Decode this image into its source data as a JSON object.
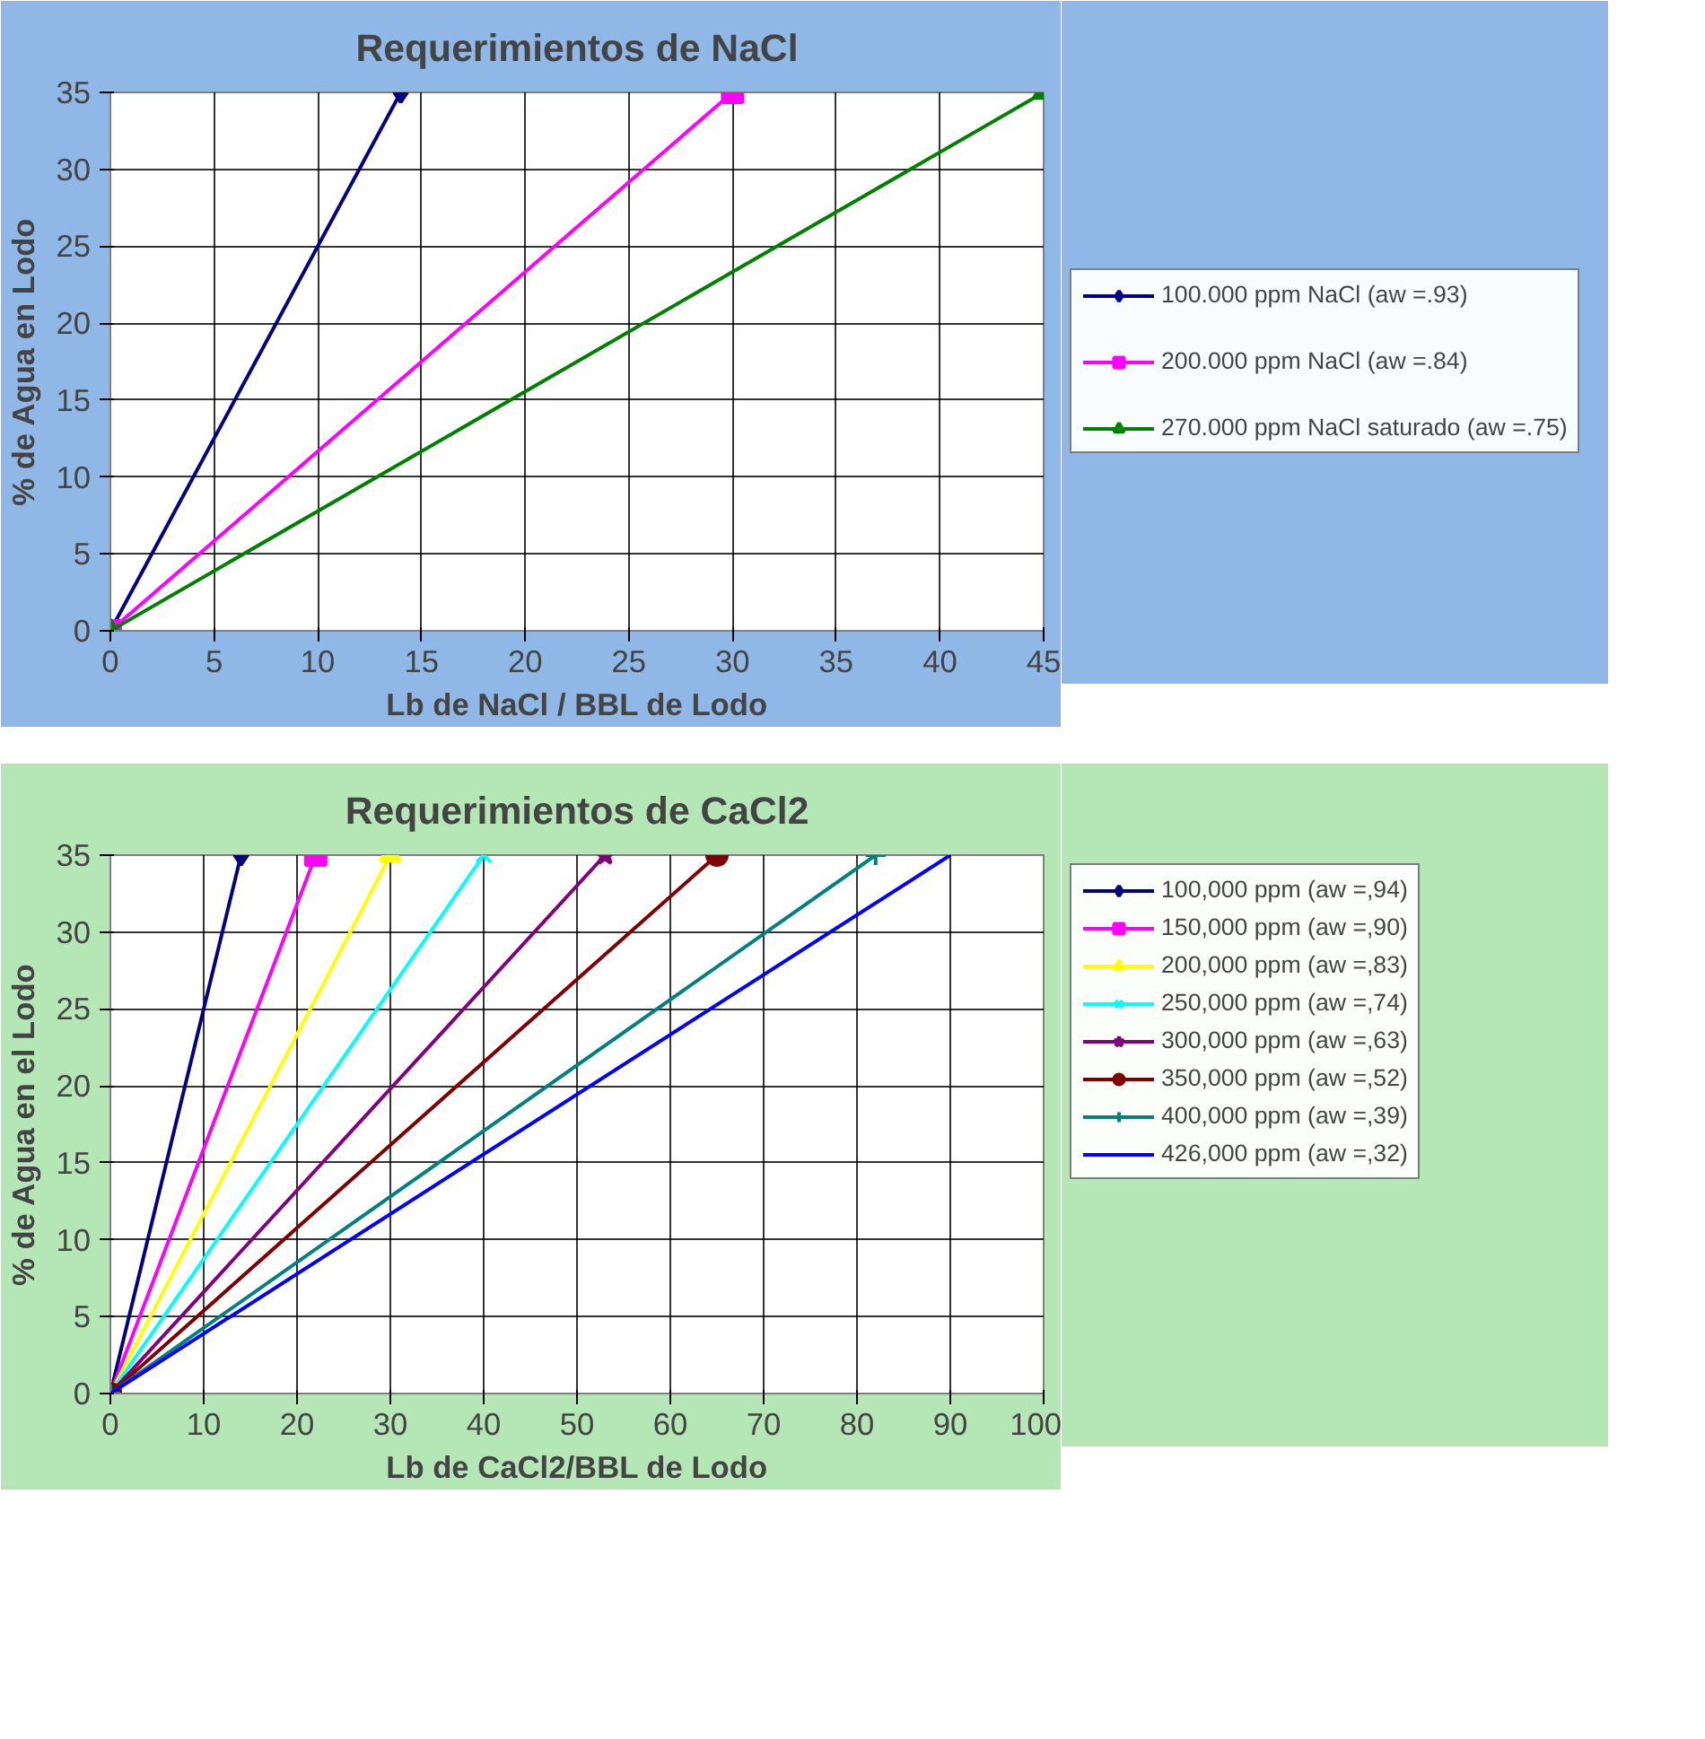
{
  "chart_data": [
    {
      "type": "line",
      "title": "Requerimientos de NaCl",
      "xlabel": "Lb de NaCl / BBL de Lodo",
      "ylabel": "% de Agua en Lodo",
      "xlim": [
        0,
        45
      ],
      "xticks": [
        0,
        5,
        10,
        15,
        20,
        25,
        30,
        35,
        40,
        45
      ],
      "ylim": [
        0,
        35
      ],
      "yticks": [
        0,
        5,
        10,
        15,
        20,
        25,
        30,
        35
      ],
      "grid": true,
      "legend": "right",
      "series": [
        {
          "name": "100.000 ppm NaCl (aw =.93)",
          "color": "#000080",
          "marker": "diamond",
          "x": [
            0,
            14
          ],
          "values": [
            0,
            35
          ]
        },
        {
          "name": "200.000 ppm NaCl (aw =.84)",
          "color": "#ff00ff",
          "marker": "square",
          "x": [
            0,
            30
          ],
          "values": [
            0,
            35
          ]
        },
        {
          "name": "270.000 ppm NaCl saturado (aw =.75)",
          "color": "#008000",
          "marker": "triangle",
          "x": [
            0,
            45
          ],
          "values": [
            0,
            35
          ]
        }
      ]
    },
    {
      "type": "line",
      "title": "Requerimientos de CaCl2",
      "xlabel": "Lb de CaCl2/BBL de Lodo",
      "ylabel": "% de Agua en el Lodo",
      "xlim": [
        0,
        100
      ],
      "xticks": [
        0,
        10,
        20,
        30,
        40,
        50,
        60,
        70,
        80,
        90,
        100
      ],
      "ylim": [
        0,
        35
      ],
      "yticks": [
        0,
        5,
        10,
        15,
        20,
        25,
        30,
        35
      ],
      "grid": true,
      "legend": "right",
      "series": [
        {
          "name": "100,000 ppm (aw =,94)",
          "color": "#000080",
          "marker": "diamond",
          "x": [
            0,
            14
          ],
          "values": [
            0,
            35
          ]
        },
        {
          "name": "150,000 ppm (aw =,90)",
          "color": "#ff00ff",
          "marker": "square",
          "x": [
            0,
            22
          ],
          "values": [
            0,
            35
          ]
        },
        {
          "name": "200,000 ppm (aw =,83)",
          "color": "#ffff00",
          "marker": "triangle",
          "x": [
            0,
            30
          ],
          "values": [
            0,
            35
          ]
        },
        {
          "name": "250,000 ppm (aw =,74)",
          "color": "#00ffff",
          "marker": "x",
          "x": [
            0,
            40
          ],
          "values": [
            0,
            35
          ]
        },
        {
          "name": "300,000 ppm (aw =,63)",
          "color": "#800080",
          "marker": "star",
          "x": [
            0,
            53
          ],
          "values": [
            0,
            35
          ]
        },
        {
          "name": "350,000 ppm (aw =,52)",
          "color": "#800000",
          "marker": "circle",
          "x": [
            0,
            65
          ],
          "values": [
            0,
            35
          ]
        },
        {
          "name": "400,000 ppm (aw =,39)",
          "color": "#008080",
          "marker": "cross",
          "x": [
            0,
            82
          ],
          "values": [
            0,
            35
          ]
        },
        {
          "name": "426,000 ppm (aw =,32)",
          "color": "#0000ff",
          "marker": "none",
          "x": [
            0,
            90
          ],
          "values": [
            0,
            35
          ]
        }
      ]
    }
  ]
}
